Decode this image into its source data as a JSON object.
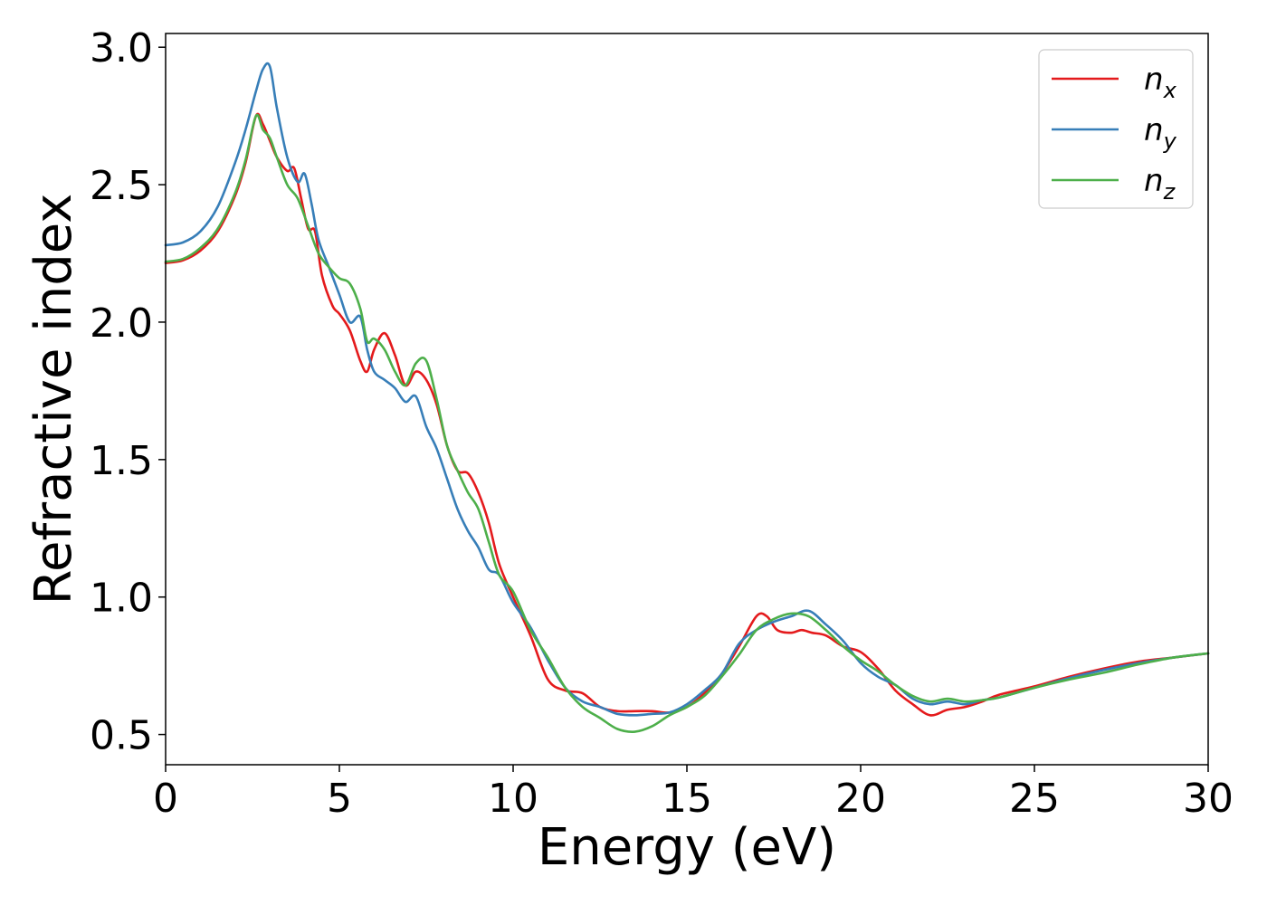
{
  "chart_data": {
    "type": "line",
    "title": "",
    "xlabel": "Energy (eV)",
    "ylabel": "Refractive index",
    "xlim": [
      0,
      30
    ],
    "ylim": [
      0.39,
      3.05
    ],
    "xticks": [
      0,
      5,
      10,
      15,
      20,
      25,
      30
    ],
    "xtick_labels": [
      "0",
      "5",
      "10",
      "15",
      "20",
      "25",
      "30"
    ],
    "yticks": [
      0.5,
      1.0,
      1.5,
      2.0,
      2.5,
      3.0
    ],
    "ytick_labels": [
      "0.5",
      "1.0",
      "1.5",
      "2.0",
      "2.5",
      "3.0"
    ],
    "grid": false,
    "legend_position": "top-right",
    "series": [
      {
        "name": "n_x",
        "legend_base": "n",
        "legend_sub": "x",
        "color": "#e41a1c",
        "x": [
          0,
          0.5,
          1,
          1.5,
          2,
          2.3,
          2.6,
          2.8,
          3.0,
          3.2,
          3.5,
          3.7,
          3.9,
          4.1,
          4.3,
          4.5,
          4.8,
          5.0,
          5.3,
          5.6,
          5.8,
          6.0,
          6.3,
          6.6,
          6.9,
          7.2,
          7.5,
          7.8,
          8.1,
          8.4,
          8.7,
          9.0,
          9.3,
          9.6,
          10.0,
          10.5,
          11.0,
          11.5,
          12.0,
          12.5,
          13.0,
          13.5,
          14.0,
          14.5,
          15.0,
          15.5,
          16.0,
          16.5,
          17.0,
          17.3,
          17.6,
          18.0,
          18.3,
          18.6,
          19.0,
          19.5,
          20.0,
          20.5,
          21.0,
          21.5,
          22.0,
          22.5,
          23.0,
          23.5,
          24.0,
          25.0,
          26.0,
          27.0,
          28.0,
          29.0,
          30.0
        ],
        "y": [
          2.215,
          2.225,
          2.26,
          2.33,
          2.46,
          2.58,
          2.75,
          2.72,
          2.66,
          2.6,
          2.55,
          2.56,
          2.45,
          2.34,
          2.33,
          2.17,
          2.06,
          2.03,
          1.97,
          1.86,
          1.82,
          1.9,
          1.96,
          1.88,
          1.77,
          1.82,
          1.79,
          1.7,
          1.55,
          1.46,
          1.45,
          1.38,
          1.27,
          1.12,
          1.0,
          0.86,
          0.7,
          0.66,
          0.65,
          0.6,
          0.585,
          0.585,
          0.585,
          0.58,
          0.6,
          0.65,
          0.72,
          0.82,
          0.93,
          0.93,
          0.88,
          0.87,
          0.88,
          0.87,
          0.86,
          0.82,
          0.8,
          0.74,
          0.66,
          0.61,
          0.57,
          0.59,
          0.6,
          0.62,
          0.645,
          0.675,
          0.71,
          0.74,
          0.765,
          0.78,
          0.795
        ]
      },
      {
        "name": "n_y",
        "legend_base": "n",
        "legend_sub": "y",
        "color": "#377eb8",
        "x": [
          0,
          0.5,
          1,
          1.5,
          2,
          2.3,
          2.6,
          2.8,
          3.0,
          3.2,
          3.5,
          3.8,
          4.0,
          4.2,
          4.4,
          4.7,
          5.0,
          5.3,
          5.6,
          5.8,
          6.0,
          6.3,
          6.6,
          6.9,
          7.2,
          7.5,
          7.8,
          8.1,
          8.4,
          8.7,
          9.0,
          9.3,
          9.6,
          10.0,
          10.5,
          11.0,
          11.5,
          12.0,
          12.5,
          13.0,
          13.5,
          14.0,
          14.5,
          15.0,
          15.5,
          16.0,
          16.5,
          17.0,
          17.5,
          18.0,
          18.5,
          19.0,
          19.5,
          20.0,
          20.5,
          21.0,
          21.5,
          22.0,
          22.5,
          23.0,
          23.5,
          24.0,
          25.0,
          26.0,
          27.0,
          28.0,
          29.0,
          30.0
        ],
        "y": [
          2.28,
          2.29,
          2.33,
          2.42,
          2.58,
          2.7,
          2.84,
          2.92,
          2.93,
          2.78,
          2.6,
          2.51,
          2.54,
          2.43,
          2.3,
          2.2,
          2.1,
          2.0,
          2.02,
          1.9,
          1.82,
          1.79,
          1.76,
          1.71,
          1.73,
          1.62,
          1.54,
          1.43,
          1.32,
          1.24,
          1.18,
          1.1,
          1.08,
          0.98,
          0.89,
          0.77,
          0.67,
          0.62,
          0.6,
          0.575,
          0.57,
          0.575,
          0.58,
          0.61,
          0.66,
          0.72,
          0.83,
          0.88,
          0.91,
          0.93,
          0.95,
          0.9,
          0.84,
          0.76,
          0.71,
          0.68,
          0.63,
          0.61,
          0.62,
          0.61,
          0.625,
          0.635,
          0.67,
          0.705,
          0.735,
          0.76,
          0.78,
          0.795
        ]
      },
      {
        "name": "n_z",
        "legend_base": "n",
        "legend_sub": "z",
        "color": "#4daf4a",
        "x": [
          0,
          0.5,
          1,
          1.5,
          2,
          2.3,
          2.6,
          2.8,
          3.0,
          3.2,
          3.5,
          3.8,
          4.1,
          4.4,
          4.7,
          5.0,
          5.3,
          5.6,
          5.8,
          6.0,
          6.3,
          6.6,
          6.9,
          7.2,
          7.5,
          7.8,
          8.1,
          8.4,
          8.7,
          9.0,
          9.3,
          9.6,
          10.0,
          10.5,
          11.0,
          11.5,
          12.0,
          12.5,
          13.0,
          13.5,
          14.0,
          14.5,
          15.0,
          15.5,
          16.0,
          16.5,
          17.0,
          17.5,
          18.0,
          18.5,
          19.0,
          19.5,
          20.0,
          20.5,
          21.0,
          21.5,
          22.0,
          22.5,
          23.0,
          23.5,
          24.0,
          25.0,
          26.0,
          27.0,
          28.0,
          29.0,
          30.0
        ],
        "y": [
          2.22,
          2.23,
          2.27,
          2.34,
          2.47,
          2.59,
          2.75,
          2.7,
          2.67,
          2.6,
          2.5,
          2.45,
          2.35,
          2.25,
          2.2,
          2.16,
          2.14,
          2.05,
          1.93,
          1.94,
          1.9,
          1.82,
          1.77,
          1.85,
          1.86,
          1.72,
          1.55,
          1.46,
          1.38,
          1.32,
          1.2,
          1.08,
          1.02,
          0.88,
          0.78,
          0.67,
          0.6,
          0.56,
          0.52,
          0.51,
          0.53,
          0.57,
          0.6,
          0.64,
          0.71,
          0.79,
          0.88,
          0.92,
          0.94,
          0.93,
          0.88,
          0.82,
          0.77,
          0.73,
          0.68,
          0.64,
          0.62,
          0.63,
          0.62,
          0.625,
          0.635,
          0.67,
          0.7,
          0.725,
          0.755,
          0.78,
          0.795
        ]
      }
    ]
  }
}
